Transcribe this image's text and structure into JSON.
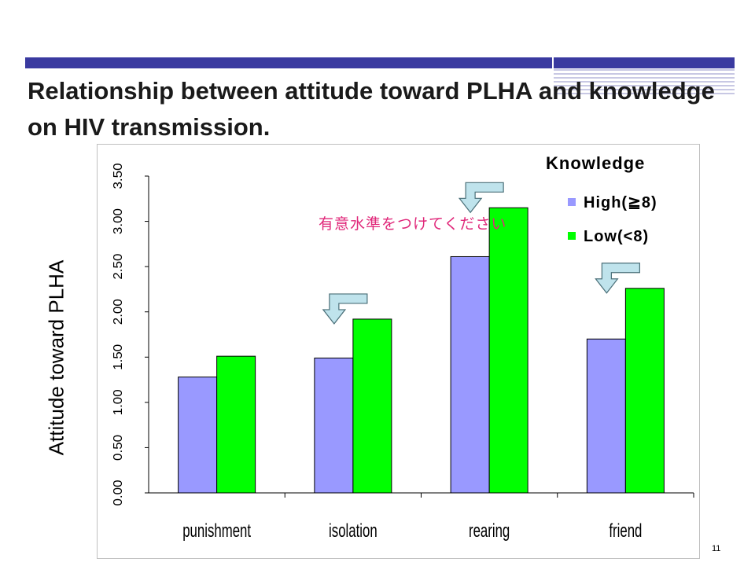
{
  "slide": {
    "title": "Relationship between attitude toward  PLHA  and knowledge on HIV transmission.",
    "ylabel": "Attitude toward  PLHA",
    "page_number": "11",
    "annotation": "有意水準をつけてください",
    "accent_color": "#3a3aa0"
  },
  "chart_data": {
    "type": "bar",
    "categories": [
      "punishment",
      "isolation",
      "rearing",
      "friend"
    ],
    "series": [
      {
        "name": "High(≧8)",
        "color": "#9999ff",
        "values": [
          1.28,
          1.49,
          2.61,
          1.7
        ]
      },
      {
        "name": "Low(<8)",
        "color": "#00ff00",
        "values": [
          1.51,
          1.92,
          3.15,
          2.26
        ]
      }
    ],
    "legend_title": "Knowledge",
    "legend_position": "top-right",
    "ylim": [
      0,
      3.5
    ],
    "yticks": [
      "0.00",
      "0.50",
      "1.00",
      "1.50",
      "2.00",
      "2.50",
      "3.00",
      "3.50"
    ],
    "grid": false,
    "markers": {
      "categories": [
        "isolation",
        "rearing",
        "friend"
      ],
      "color": "#bfe3ec",
      "icon": "bent-arrow-down-left-icon"
    }
  }
}
